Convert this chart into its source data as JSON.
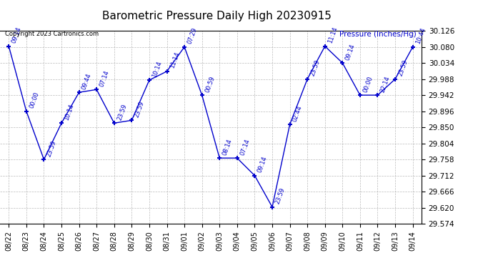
{
  "title": "Barometric Pressure Daily High 20230915",
  "ylabel": "Pressure (Inches/Hg)",
  "copyright": "Copyright 2023 Cartronics.com",
  "line_color": "#0000cc",
  "marker_color": "#0000cc",
  "background_color": "#ffffff",
  "grid_color": "#aaaaaa",
  "ylim": [
    29.574,
    30.126
  ],
  "yticks": [
    29.574,
    29.62,
    29.666,
    29.712,
    29.758,
    29.804,
    29.85,
    29.896,
    29.942,
    29.988,
    30.034,
    30.08,
    30.126
  ],
  "dates": [
    "08/22",
    "08/23",
    "08/24",
    "08/25",
    "08/26",
    "08/27",
    "08/28",
    "08/29",
    "08/30",
    "08/31",
    "09/01",
    "09/02",
    "09/03",
    "09/04",
    "09/05",
    "09/06",
    "09/07",
    "09/08",
    "09/09",
    "09/10",
    "09/11",
    "09/12",
    "09/13",
    "09/14"
  ],
  "values": [
    30.082,
    29.896,
    29.758,
    29.862,
    29.95,
    29.958,
    29.862,
    29.87,
    29.985,
    30.01,
    30.08,
    29.942,
    29.762,
    29.762,
    29.712,
    29.622,
    29.858,
    29.988,
    30.082,
    30.034,
    29.942,
    29.942,
    29.988,
    30.08
  ],
  "labels": [
    "09:14",
    "00:00",
    "23:59",
    "10:14",
    "09:44",
    "07:14",
    "23:59",
    "23:59",
    "10:14",
    "11:14",
    "07:29",
    "00:59",
    "08:14",
    "07:14",
    "09:14",
    "23:59",
    "02:44",
    "23:59",
    "11:14",
    "09:14",
    "00:00",
    "22:14",
    "23:59",
    "10:44"
  ],
  "title_fontsize": 11,
  "label_fontsize": 6,
  "tick_fontsize": 7.5,
  "xtick_fontsize": 7
}
